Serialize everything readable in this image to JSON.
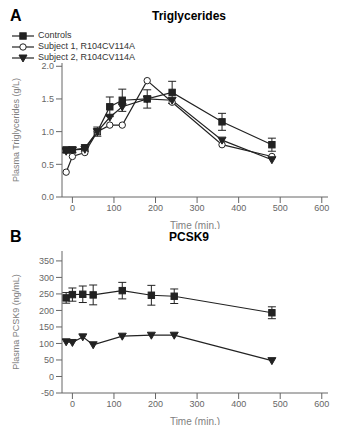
{
  "chart_data": [
    {
      "type": "line",
      "title": "Triglycerides",
      "xlabel": "Time (min.)",
      "ylabel": "Plasma Triglycerides (g/L)",
      "annotations": [
        "A"
      ],
      "x": [
        -15,
        0,
        30,
        60,
        90,
        120,
        180,
        240,
        360,
        480
      ],
      "xlim": [
        -25,
        615
      ],
      "xticks": [
        0,
        100,
        200,
        300,
        400,
        500,
        600
      ],
      "ylim": [
        0,
        2.05
      ],
      "yticks": [
        {
          "value": 0,
          "label": "0.0"
        },
        0.5,
        {
          "value": 1.0,
          "label": "1.0"
        },
        1.5,
        {
          "value": 2.0,
          "label": "2.0"
        }
      ],
      "legend": "upper right",
      "series": [
        {
          "name": "Controls",
          "color": "#222222",
          "marker": "square",
          "line_style": "solid",
          "values": [
            0.72,
            0.72,
            0.75,
            1.0,
            1.38,
            1.48,
            1.5,
            1.6,
            1.15,
            0.8
          ],
          "yerr": [
            0.04,
            0.04,
            0.05,
            0.07,
            0.15,
            0.17,
            0.14,
            0.17,
            0.13,
            0.1
          ]
        },
        {
          "name": "Subject 1, R104CV114A",
          "color": "#222222",
          "marker": "circle_open",
          "line_style": "solid",
          "values": [
            0.38,
            0.62,
            0.68,
            1.0,
            1.1,
            1.1,
            1.78,
            1.45,
            0.8,
            0.62
          ]
        },
        {
          "name": "Subject 2, R104CV114A",
          "color": "#222222",
          "marker": "triangle_down",
          "line_style": "solid",
          "values": [
            0.7,
            0.72,
            0.73,
            1.0,
            1.22,
            1.38,
            1.5,
            1.48,
            0.87,
            0.57
          ]
        }
      ]
    },
    {
      "type": "line",
      "title": "PCSK9",
      "xlabel": "Time (min.)",
      "ylabel": "Plasma PCSK9 (ng/mL)",
      "annotations": [
        "B"
      ],
      "x": [
        -15,
        0,
        25,
        50,
        120,
        190,
        245,
        480
      ],
      "xlim": [
        -25,
        615
      ],
      "xticks": [
        0,
        100,
        200,
        300,
        400,
        500,
        600
      ],
      "ylim": [
        -50,
        380
      ],
      "yticks": [
        -50,
        0,
        50,
        100,
        150,
        200,
        250,
        300,
        350
      ],
      "series": [
        {
          "color": "#222222",
          "marker": "square",
          "line_style": "solid",
          "values": [
            238,
            248,
            249,
            247,
            260,
            246,
            243,
            193
          ],
          "yerr": [
            16,
            20,
            25,
            30,
            25,
            30,
            22,
            18
          ]
        },
        {
          "color": "#222222",
          "marker": "triangle_down",
          "line_style": "solid",
          "values": [
            105,
            103,
            120,
            96,
            122,
            125,
            125,
            48
          ]
        }
      ]
    }
  ]
}
